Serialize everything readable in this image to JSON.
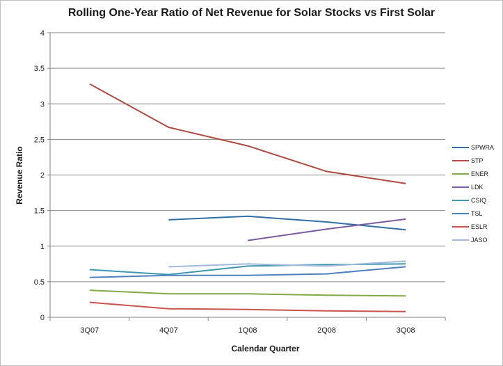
{
  "chart_data": {
    "type": "line",
    "title": "Rolling One-Year Ratio of Net Revenue for Solar Stocks vs First Solar",
    "xlabel": "Calendar Quarter",
    "ylabel": "Revenue Ratio",
    "categories": [
      "3Q07",
      "4Q07",
      "1Q08",
      "2Q08",
      "3Q08"
    ],
    "ylim": [
      0,
      4
    ],
    "yticks": [
      "0",
      "0.5",
      "1",
      "1.5",
      "2",
      "2.5",
      "3",
      "3.5",
      "4"
    ],
    "grid": true,
    "legend_position": "right",
    "series": [
      {
        "name": "SPWRA",
        "color": "#2f6fa8",
        "values": [
          null,
          1.37,
          1.42,
          1.34,
          1.23
        ]
      },
      {
        "name": "STP",
        "color": "#b04a41",
        "values": [
          3.28,
          2.67,
          2.41,
          2.05,
          1.88
        ]
      },
      {
        "name": "ENER",
        "color": "#82a946",
        "values": [
          0.38,
          0.33,
          0.33,
          0.31,
          0.3
        ]
      },
      {
        "name": "LDK",
        "color": "#7a5ba0",
        "values": [
          null,
          null,
          1.08,
          1.24,
          1.38
        ]
      },
      {
        "name": "CSIQ",
        "color": "#3d97b0",
        "values": [
          0.67,
          0.6,
          0.72,
          0.74,
          0.75
        ]
      },
      {
        "name": "TSL",
        "color": "#4d81bd",
        "values": [
          0.56,
          0.59,
          0.59,
          0.61,
          0.71
        ]
      },
      {
        "name": "ESLR",
        "color": "#c9534e",
        "values": [
          0.21,
          0.12,
          0.11,
          0.09,
          0.08
        ]
      },
      {
        "name": "JASO",
        "color": "#a2b9dc",
        "values": [
          null,
          0.71,
          0.75,
          0.72,
          0.79
        ]
      }
    ]
  }
}
